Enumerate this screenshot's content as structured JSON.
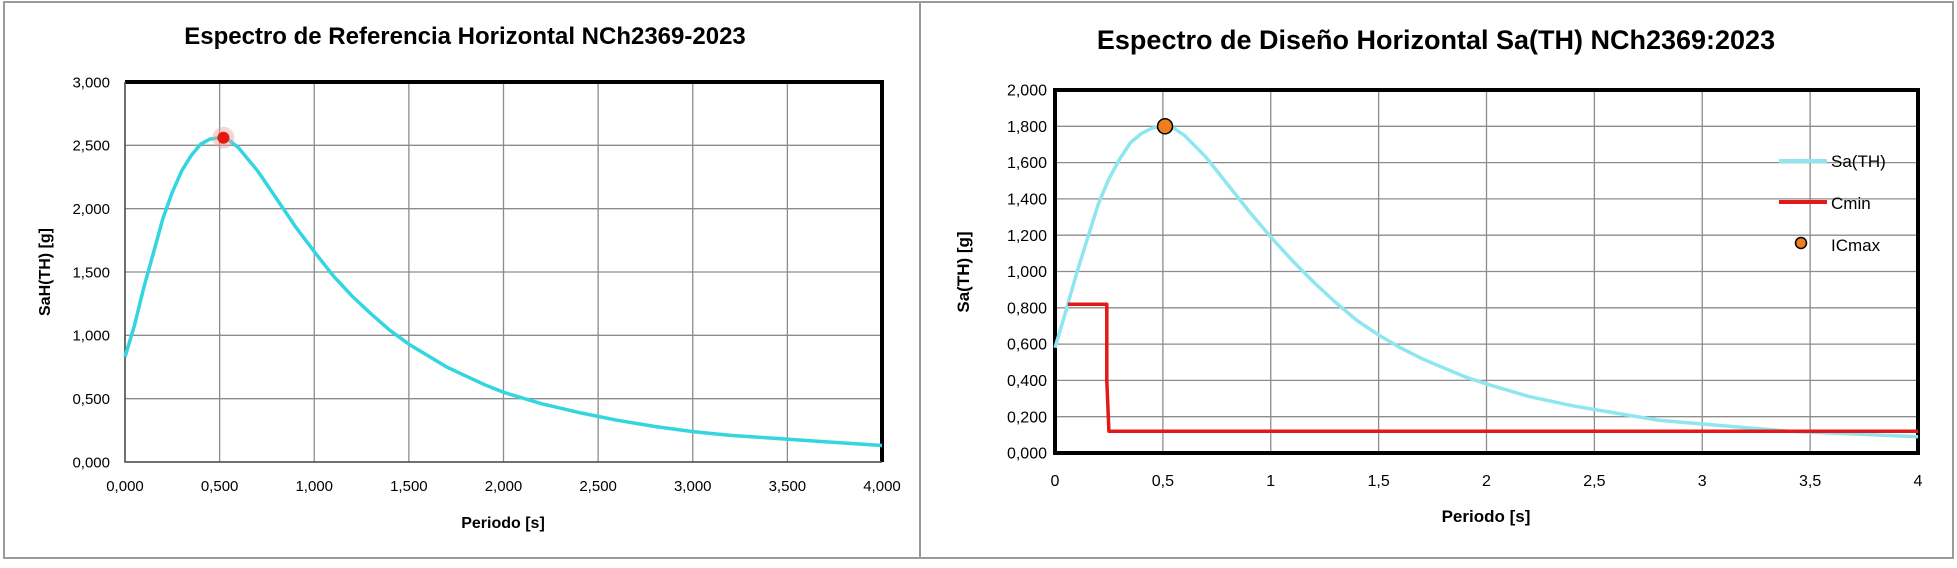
{
  "charts": [
    {
      "title": "Espectro de Referencia Horizontal NCh2369-2023",
      "chart_data": {
        "type": "line",
        "title": "Espectro de Referencia Horizontal NCh2369-2023",
        "xlabel": "Periodo [s]",
        "ylabel": "SaH(TH)  [g]",
        "xlim": [
          0,
          4
        ],
        "ylim": [
          0,
          3
        ],
        "x_ticks": [
          "0,000",
          "0,500",
          "1,000",
          "1,500",
          "2,000",
          "2,500",
          "3,000",
          "3,500",
          "4,000"
        ],
        "y_ticks": [
          "0,000",
          "0,500",
          "1,000",
          "1,500",
          "2,000",
          "2,500",
          "3,000"
        ],
        "grid": true,
        "series": [
          {
            "color": "#33d6e0",
            "x": [
              0,
              0.05,
              0.1,
              0.15,
              0.2,
              0.25,
              0.3,
              0.35,
              0.4,
              0.45,
              0.5,
              0.55,
              0.6,
              0.7,
              0.8,
              0.9,
              1.0,
              1.1,
              1.2,
              1.3,
              1.4,
              1.5,
              1.6,
              1.7,
              1.8,
              1.9,
              2.0,
              2.2,
              2.4,
              2.6,
              2.8,
              3.0,
              3.2,
              3.4,
              3.6,
              3.8,
              4.0
            ],
            "y": [
              0.83,
              1.08,
              1.38,
              1.65,
              1.92,
              2.13,
              2.3,
              2.42,
              2.51,
              2.55,
              2.56,
              2.54,
              2.48,
              2.3,
              2.08,
              1.86,
              1.66,
              1.47,
              1.31,
              1.17,
              1.04,
              0.93,
              0.84,
              0.75,
              0.68,
              0.61,
              0.55,
              0.46,
              0.39,
              0.33,
              0.28,
              0.24,
              0.21,
              0.19,
              0.17,
              0.15,
              0.13
            ]
          }
        ],
        "marker": {
          "x": 0.52,
          "y": 2.56,
          "color": "#e8170d"
        }
      }
    },
    {
      "title": "Espectro de Diseño Horizontal Sa(TH) NCh2369:2023",
      "chart_data": {
        "type": "line",
        "title": "Espectro de Diseño Horizontal Sa(TH) NCh2369:2023",
        "xlabel": "Periodo [s]",
        "ylabel": "Sa(TH)  [g]",
        "xlim": [
          0,
          4
        ],
        "ylim": [
          0,
          2
        ],
        "x_ticks": [
          "0",
          "0,5",
          "1",
          "1,5",
          "2",
          "2,5",
          "3",
          "3,5",
          "4"
        ],
        "y_ticks": [
          "0,000",
          "0,200",
          "0,400",
          "0,600",
          "0,800",
          "1,000",
          "1,200",
          "1,400",
          "1,600",
          "1,800",
          "2,000"
        ],
        "grid": true,
        "legend_position": "right",
        "series": [
          {
            "name": "Sa(TH)",
            "color": "#8ee6ee",
            "x": [
              0,
              0.05,
              0.1,
              0.15,
              0.2,
              0.25,
              0.3,
              0.35,
              0.4,
              0.45,
              0.5,
              0.55,
              0.6,
              0.7,
              0.8,
              0.9,
              1.0,
              1.1,
              1.2,
              1.3,
              1.4,
              1.5,
              1.6,
              1.7,
              1.8,
              1.9,
              2.0,
              2.2,
              2.4,
              2.6,
              2.8,
              3.0,
              3.2,
              3.4,
              3.6,
              3.8,
              4.0
            ],
            "y": [
              0.58,
              0.78,
              0.99,
              1.18,
              1.37,
              1.51,
              1.62,
              1.71,
              1.76,
              1.79,
              1.8,
              1.79,
              1.75,
              1.63,
              1.48,
              1.33,
              1.19,
              1.06,
              0.94,
              0.83,
              0.73,
              0.65,
              0.58,
              0.52,
              0.47,
              0.42,
              0.38,
              0.31,
              0.26,
              0.22,
              0.18,
              0.16,
              0.14,
              0.12,
              0.11,
              0.1,
              0.09
            ]
          },
          {
            "name": "Cmin",
            "color": "#e31818",
            "x": [
              0.06,
              0.24,
              0.24,
              0.25,
              4.0
            ],
            "y": [
              0.82,
              0.82,
              0.4,
              0.12,
              0.12
            ]
          },
          {
            "name": "ICmax",
            "color": "#f07d1e",
            "type": "scatter",
            "x": [
              0.51
            ],
            "y": [
              1.8
            ]
          }
        ]
      }
    }
  ]
}
